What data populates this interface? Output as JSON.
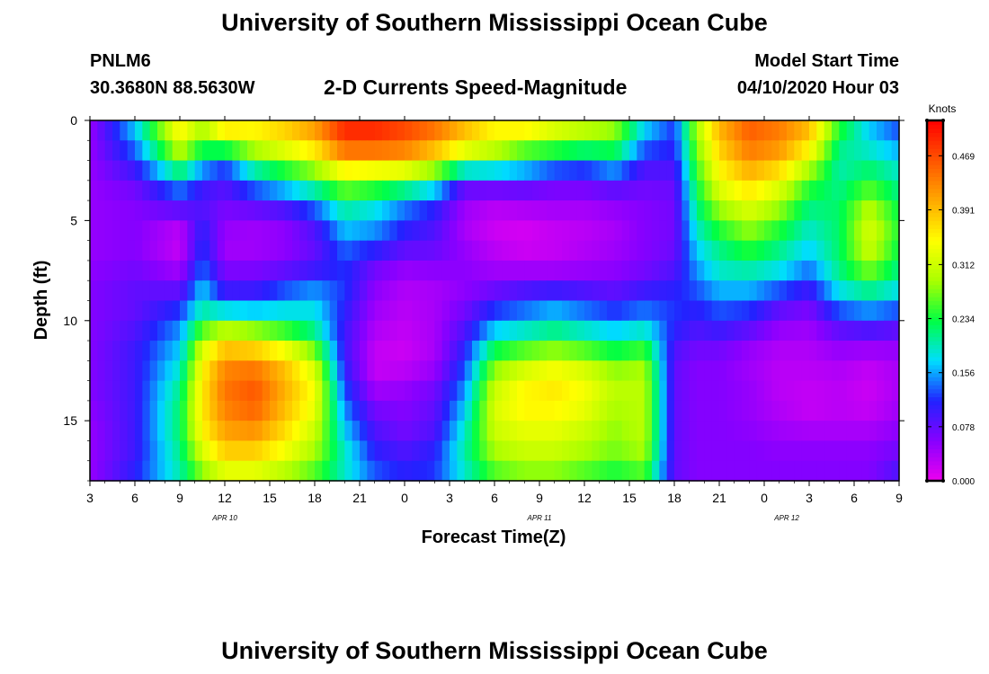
{
  "header": {
    "title": "University of Southern Mississippi Ocean Cube",
    "station": "PNLM6",
    "coords": "30.3680N 88.5630W",
    "chart_title": "2-D Currents Speed-Magnitude",
    "model_label": "Model Start Time",
    "model_time": "04/10/2020 Hour 03"
  },
  "footer": {
    "title": "University of Southern Mississippi Ocean Cube"
  },
  "chart_data": {
    "type": "heatmap",
    "title": "2-D Currents Speed-Magnitude",
    "xlabel": "Forecast Time(Z)",
    "ylabel": "Depth (ft)",
    "x_ticks": [
      "3",
      "6",
      "9",
      "12",
      "15",
      "18",
      "21",
      "0",
      "3",
      "6",
      "9",
      "12",
      "15",
      "18",
      "21",
      "0",
      "3",
      "6",
      "9"
    ],
    "x_tick_hours": [
      3,
      6,
      9,
      12,
      15,
      18,
      21,
      24,
      27,
      30,
      33,
      36,
      39,
      42,
      45,
      48,
      51,
      54,
      57
    ],
    "date_labels": [
      {
        "label": "APR 10",
        "hour": 12
      },
      {
        "label": "APR 11",
        "hour": 33
      },
      {
        "label": "APR 12",
        "hour": 49.5
      }
    ],
    "xlim": [
      3,
      57
    ],
    "ylim": [
      0,
      18
    ],
    "y_ticks": [
      0,
      5,
      10,
      15
    ],
    "y_reversed": true,
    "colorbar": {
      "title": "Knots",
      "min": 0.0,
      "max": 0.52,
      "tick_values": [
        0.0,
        0.078,
        0.156,
        0.234,
        0.312,
        0.391,
        0.469
      ],
      "tick_labels": [
        "0.000",
        "0.078",
        "0.156",
        "0.234",
        "0.312",
        "0.391",
        "0.469"
      ],
      "colors": [
        "#ee00ee",
        "#8800ff",
        "#2222ff",
        "#00ddff",
        "#00ff44",
        "#aaff00",
        "#ffff00",
        "#ffaa00",
        "#ff5500",
        "#ff0000"
      ]
    },
    "depth_levels_ft": [
      0,
      1,
      2,
      3,
      4,
      5,
      6,
      7,
      8,
      9,
      10,
      11,
      12,
      13,
      14,
      15,
      16,
      17,
      18
    ],
    "time_hours": [
      3,
      6,
      9,
      10.5,
      12,
      14,
      16,
      18,
      20,
      22,
      24,
      26,
      28,
      30,
      32,
      34,
      36,
      38,
      40,
      42,
      43.5,
      45,
      47,
      49,
      51,
      53,
      55,
      57
    ],
    "speed_knots": [
      [
        0.05,
        0.18,
        0.38,
        0.3,
        0.39,
        0.36,
        0.38,
        0.42,
        0.5,
        0.5,
        0.48,
        0.44,
        0.4,
        0.36,
        0.4,
        0.34,
        0.32,
        0.3,
        0.18,
        0.12,
        0.3,
        0.4,
        0.46,
        0.44,
        0.4,
        0.26,
        0.16,
        0.12
      ],
      [
        0.05,
        0.15,
        0.32,
        0.28,
        0.32,
        0.34,
        0.37,
        0.4,
        0.48,
        0.48,
        0.46,
        0.44,
        0.38,
        0.34,
        0.3,
        0.3,
        0.28,
        0.26,
        0.16,
        0.12,
        0.28,
        0.39,
        0.45,
        0.43,
        0.38,
        0.22,
        0.18,
        0.14
      ],
      [
        0.05,
        0.12,
        0.28,
        0.18,
        0.14,
        0.24,
        0.28,
        0.32,
        0.4,
        0.4,
        0.4,
        0.34,
        0.28,
        0.26,
        0.22,
        0.18,
        0.16,
        0.2,
        0.1,
        0.1,
        0.26,
        0.36,
        0.42,
        0.4,
        0.32,
        0.2,
        0.2,
        0.18
      ],
      [
        0.05,
        0.08,
        0.16,
        0.12,
        0.1,
        0.16,
        0.2,
        0.24,
        0.3,
        0.28,
        0.26,
        0.22,
        0.1,
        0.1,
        0.1,
        0.08,
        0.08,
        0.1,
        0.08,
        0.08,
        0.24,
        0.34,
        0.38,
        0.34,
        0.26,
        0.2,
        0.24,
        0.2
      ],
      [
        0.05,
        0.06,
        0.12,
        0.08,
        0.07,
        0.1,
        0.12,
        0.16,
        0.22,
        0.2,
        0.16,
        0.12,
        0.05,
        0.04,
        0.05,
        0.05,
        0.05,
        0.06,
        0.06,
        0.07,
        0.22,
        0.3,
        0.34,
        0.3,
        0.22,
        0.22,
        0.28,
        0.22
      ],
      [
        0.05,
        0.06,
        0.04,
        0.1,
        0.06,
        0.05,
        0.06,
        0.1,
        0.18,
        0.16,
        0.12,
        0.1,
        0.04,
        0.02,
        0.02,
        0.03,
        0.03,
        0.04,
        0.06,
        0.07,
        0.2,
        0.26,
        0.3,
        0.26,
        0.2,
        0.22,
        0.32,
        0.24
      ],
      [
        0.05,
        0.06,
        0.02,
        0.12,
        0.04,
        0.04,
        0.05,
        0.08,
        0.15,
        0.14,
        0.1,
        0.08,
        0.04,
        0.02,
        0.01,
        0.02,
        0.03,
        0.04,
        0.06,
        0.07,
        0.18,
        0.22,
        0.26,
        0.22,
        0.18,
        0.22,
        0.32,
        0.24
      ],
      [
        0.05,
        0.06,
        0.03,
        0.12,
        0.05,
        0.05,
        0.06,
        0.08,
        0.12,
        0.08,
        0.06,
        0.07,
        0.06,
        0.04,
        0.03,
        0.03,
        0.04,
        0.05,
        0.06,
        0.08,
        0.16,
        0.2,
        0.22,
        0.2,
        0.16,
        0.22,
        0.3,
        0.22
      ],
      [
        0.06,
        0.08,
        0.06,
        0.16,
        0.08,
        0.08,
        0.1,
        0.12,
        0.12,
        0.06,
        0.04,
        0.04,
        0.05,
        0.05,
        0.06,
        0.06,
        0.06,
        0.06,
        0.08,
        0.1,
        0.14,
        0.18,
        0.18,
        0.16,
        0.12,
        0.2,
        0.24,
        0.2
      ],
      [
        0.06,
        0.08,
        0.1,
        0.18,
        0.12,
        0.12,
        0.16,
        0.18,
        0.12,
        0.05,
        0.03,
        0.04,
        0.06,
        0.1,
        0.12,
        0.14,
        0.12,
        0.1,
        0.12,
        0.12,
        0.12,
        0.14,
        0.14,
        0.1,
        0.08,
        0.16,
        0.18,
        0.16
      ],
      [
        0.06,
        0.08,
        0.14,
        0.22,
        0.24,
        0.22,
        0.2,
        0.18,
        0.1,
        0.04,
        0.03,
        0.04,
        0.08,
        0.14,
        0.16,
        0.18,
        0.16,
        0.14,
        0.16,
        0.12,
        0.1,
        0.12,
        0.1,
        0.06,
        0.05,
        0.1,
        0.12,
        0.1
      ],
      [
        0.06,
        0.1,
        0.16,
        0.3,
        0.36,
        0.34,
        0.3,
        0.24,
        0.1,
        0.03,
        0.02,
        0.04,
        0.1,
        0.2,
        0.22,
        0.24,
        0.22,
        0.2,
        0.22,
        0.1,
        0.08,
        0.08,
        0.06,
        0.04,
        0.04,
        0.06,
        0.06,
        0.06
      ],
      [
        0.06,
        0.1,
        0.18,
        0.34,
        0.42,
        0.42,
        0.38,
        0.3,
        0.1,
        0.02,
        0.02,
        0.04,
        0.12,
        0.26,
        0.3,
        0.32,
        0.3,
        0.26,
        0.28,
        0.08,
        0.06,
        0.06,
        0.04,
        0.03,
        0.03,
        0.04,
        0.03,
        0.04
      ],
      [
        0.06,
        0.1,
        0.2,
        0.36,
        0.44,
        0.46,
        0.4,
        0.34,
        0.12,
        0.03,
        0.04,
        0.06,
        0.14,
        0.3,
        0.34,
        0.36,
        0.34,
        0.3,
        0.3,
        0.08,
        0.06,
        0.06,
        0.05,
        0.03,
        0.03,
        0.03,
        0.02,
        0.04
      ],
      [
        0.06,
        0.1,
        0.22,
        0.36,
        0.44,
        0.46,
        0.4,
        0.34,
        0.14,
        0.06,
        0.06,
        0.08,
        0.16,
        0.32,
        0.36,
        0.36,
        0.34,
        0.3,
        0.3,
        0.08,
        0.06,
        0.06,
        0.05,
        0.03,
        0.02,
        0.03,
        0.02,
        0.04
      ],
      [
        0.05,
        0.1,
        0.22,
        0.36,
        0.42,
        0.44,
        0.38,
        0.32,
        0.16,
        0.08,
        0.06,
        0.08,
        0.18,
        0.32,
        0.34,
        0.34,
        0.32,
        0.28,
        0.3,
        0.08,
        0.06,
        0.06,
        0.05,
        0.04,
        0.03,
        0.03,
        0.03,
        0.05
      ],
      [
        0.05,
        0.1,
        0.22,
        0.34,
        0.4,
        0.4,
        0.36,
        0.3,
        0.18,
        0.1,
        0.08,
        0.1,
        0.2,
        0.3,
        0.32,
        0.32,
        0.3,
        0.28,
        0.3,
        0.08,
        0.06,
        0.06,
        0.06,
        0.05,
        0.05,
        0.05,
        0.05,
        0.06
      ],
      [
        0.05,
        0.1,
        0.2,
        0.3,
        0.36,
        0.36,
        0.32,
        0.28,
        0.2,
        0.12,
        0.1,
        0.12,
        0.2,
        0.28,
        0.3,
        0.3,
        0.28,
        0.26,
        0.28,
        0.08,
        0.06,
        0.06,
        0.06,
        0.06,
        0.06,
        0.06,
        0.06,
        0.08
      ],
      [
        0.05,
        0.12,
        0.2,
        0.26,
        0.3,
        0.3,
        0.28,
        0.24,
        0.18,
        0.14,
        0.12,
        0.12,
        0.18,
        0.24,
        0.26,
        0.26,
        0.24,
        0.22,
        0.24,
        0.08,
        0.06,
        0.06,
        0.06,
        0.06,
        0.06,
        0.06,
        0.06,
        0.1
      ]
    ]
  }
}
